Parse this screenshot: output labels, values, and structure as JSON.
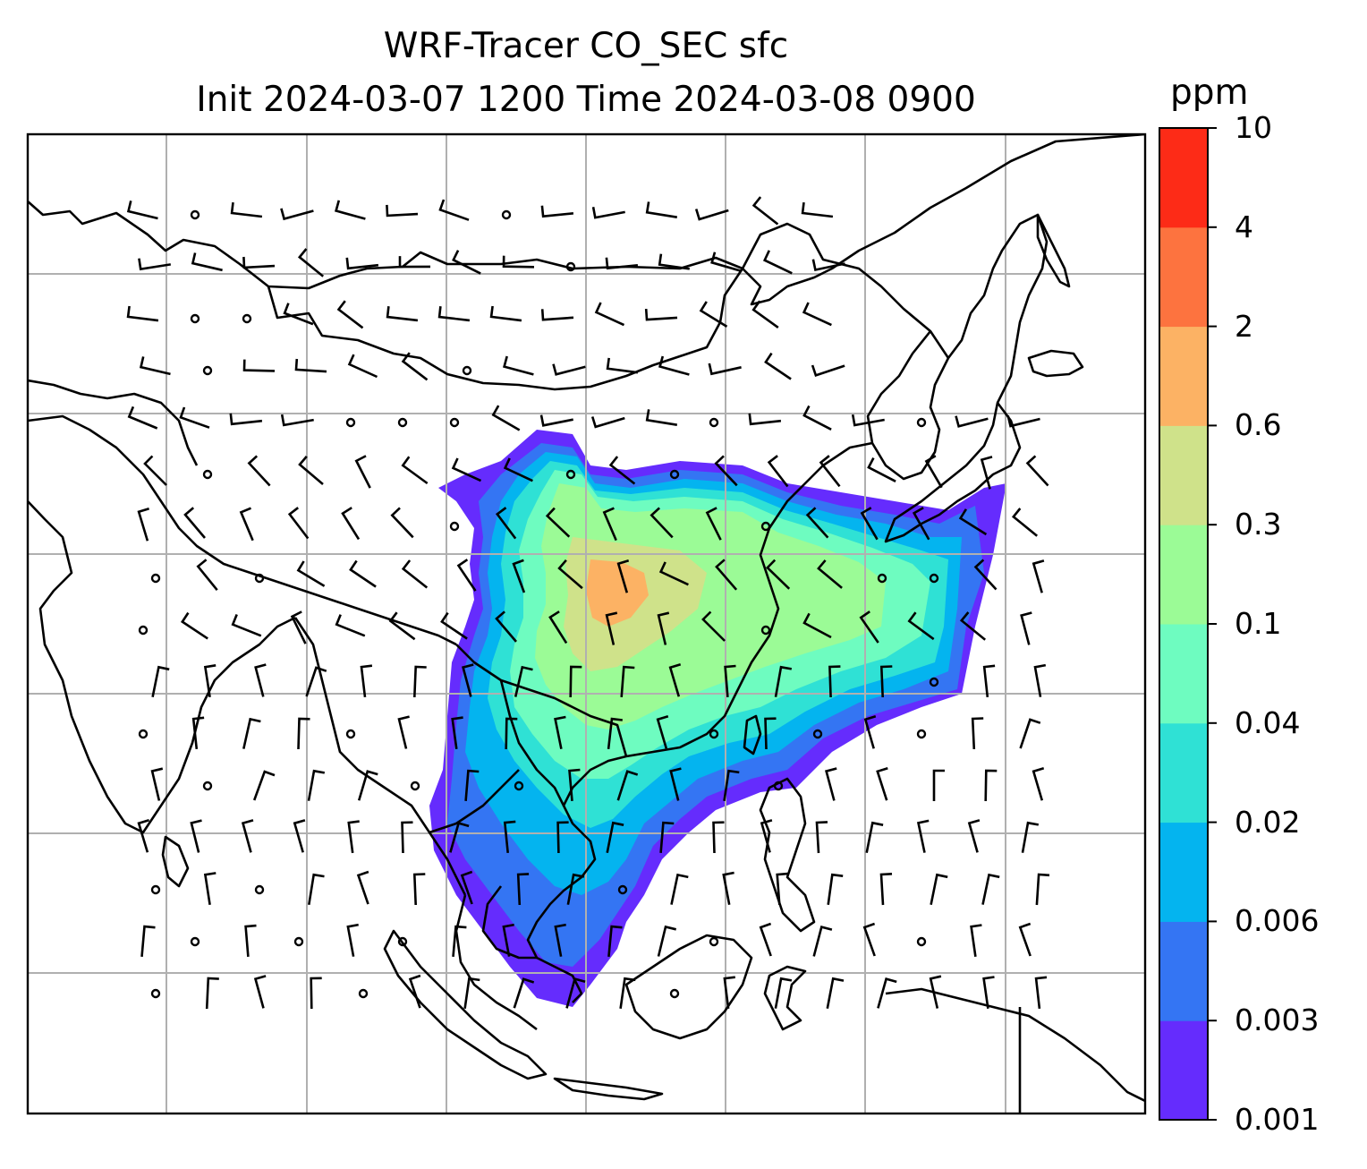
{
  "title": {
    "line1": "WRF-Tracer CO_SEC sfc",
    "line2": "Init 2024-03-07 1200 Time 2024-03-08 0900"
  },
  "colorbar": {
    "units": "ppm",
    "levels": [
      "0.001",
      "0.003",
      "0.006",
      "0.02",
      "0.04",
      "0.1",
      "0.3",
      "0.6",
      "2",
      "4",
      "10"
    ],
    "colors": [
      "#652cfd",
      "#3475f3",
      "#04b4ef",
      "#2fe1d5",
      "#6efcc0",
      "#9bfb96",
      "#cfe28a",
      "#fcb264",
      "#fd733f",
      "#fd2b17"
    ]
  },
  "map": {
    "gridlines": true,
    "ocean_color": "#ffffff",
    "coastline_color": "#000000",
    "gridline_color": "#b0b0b0"
  }
}
